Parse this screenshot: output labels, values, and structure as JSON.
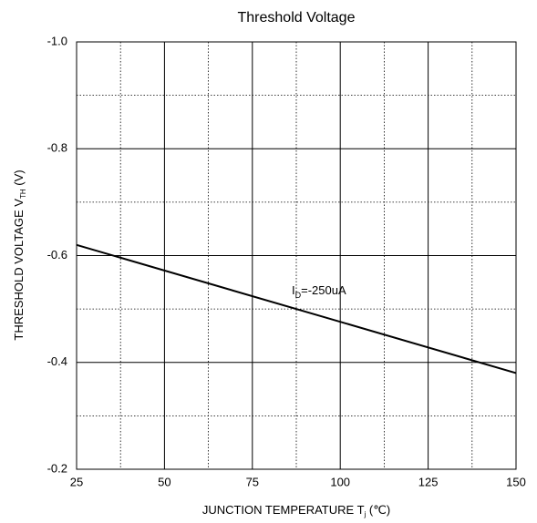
{
  "chart_data": {
    "type": "line",
    "title": "Threshold Voltage",
    "xlabel": {
      "text": "JUNCTION TEMPERATURE T",
      "sub": "j",
      "after": " (℃)"
    },
    "ylabel": {
      "text": "THRESHOLD VOLTAGE V",
      "sub": "TH",
      "after": " (V)"
    },
    "annotation": {
      "text": "I",
      "sub": "D",
      "after": "=-250uA"
    },
    "x": [
      25,
      150
    ],
    "series": [
      {
        "color": "#000000",
        "values": [
          -0.62,
          -0.38
        ]
      }
    ],
    "xlim": [
      25,
      150
    ],
    "xticks": [
      25,
      50,
      75,
      100,
      125,
      150
    ],
    "xminor": [
      37.5,
      62.5,
      87.5,
      112.5,
      137.5
    ],
    "ylim": [
      -1.0,
      -0.2
    ],
    "y_inverted": true,
    "yticks": [
      {
        "value": -1.0,
        "label": "-1.0"
      },
      -0.8,
      -0.6,
      -0.4,
      -0.2
    ],
    "yminor": [
      -0.9,
      -0.7,
      -0.5,
      -0.3
    ],
    "grid": true
  }
}
